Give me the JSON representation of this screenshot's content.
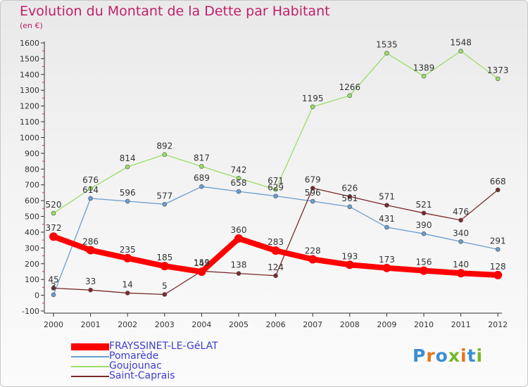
{
  "title": "Evolution du Montant de la Dette par Habitant",
  "unit": "(en €)",
  "brand": "Proxiti",
  "brand_colors": [
    "#3a8fd1",
    "#e8751a",
    "#3a8fd1",
    "#74b829",
    "#e8751a",
    "#3a8fd1",
    "#74b829"
  ],
  "chart_data": {
    "type": "line",
    "categories": [
      "2000",
      "2001",
      "2002",
      "2003",
      "2004",
      "2005",
      "2006",
      "2007",
      "2008",
      "2009",
      "2010",
      "2011",
      "2012"
    ],
    "ylim": [
      -100,
      1600
    ],
    "yticks": [
      -100,
      0,
      100,
      200,
      300,
      400,
      500,
      600,
      700,
      800,
      900,
      1000,
      1100,
      1200,
      1300,
      1400,
      1500,
      1600
    ],
    "grid": false,
    "legend_position": "bottom-left",
    "series": [
      {
        "name": "FRAYSSINET-LE-GéLAT",
        "color": "#ff0000",
        "values": [
          372,
          286,
          235,
          185,
          149,
          360,
          283,
          228,
          193,
          173,
          156,
          140,
          128
        ]
      },
      {
        "name": "Pomarède",
        "color": "#6a9dcf",
        "values": [
          3,
          614,
          596,
          577,
          689,
          658,
          629,
          596,
          561,
          431,
          390,
          340,
          291
        ]
      },
      {
        "name": "Goujounac",
        "color": "#99dd66",
        "values": [
          520,
          676,
          814,
          892,
          817,
          742,
          671,
          1195,
          1266,
          1535,
          1389,
          1548,
          1373
        ]
      },
      {
        "name": "Saint-Caprais",
        "color": "#7b2b2b",
        "values": [
          45,
          33,
          14,
          5,
          153,
          138,
          124,
          679,
          626,
          571,
          521,
          476,
          668
        ]
      }
    ]
  }
}
